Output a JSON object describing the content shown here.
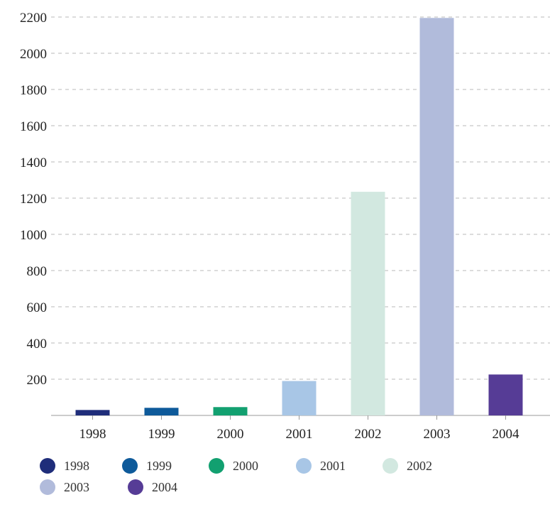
{
  "chart_data": {
    "type": "bar",
    "title": "",
    "xlabel": "",
    "ylabel": "",
    "categories": [
      "1998",
      "1999",
      "2000",
      "2001",
      "2002",
      "2003",
      "2004"
    ],
    "values": [
      30,
      42,
      46,
      190,
      1235,
      2195,
      226
    ],
    "colors": [
      "#1f2d7a",
      "#0e5a9a",
      "#12a070",
      "#a8c6e6",
      "#d2e8e0",
      "#b1bbdb",
      "#563c96"
    ],
    "ylim": [
      0,
      2200
    ],
    "yticks": [
      200,
      400,
      600,
      800,
      1000,
      1200,
      1400,
      1600,
      1800,
      2000,
      2200
    ],
    "grid": true,
    "legend": {
      "position": "bottom",
      "entries": [
        "1998",
        "1999",
        "2000",
        "2001",
        "2002",
        "2003",
        "2004"
      ]
    }
  }
}
